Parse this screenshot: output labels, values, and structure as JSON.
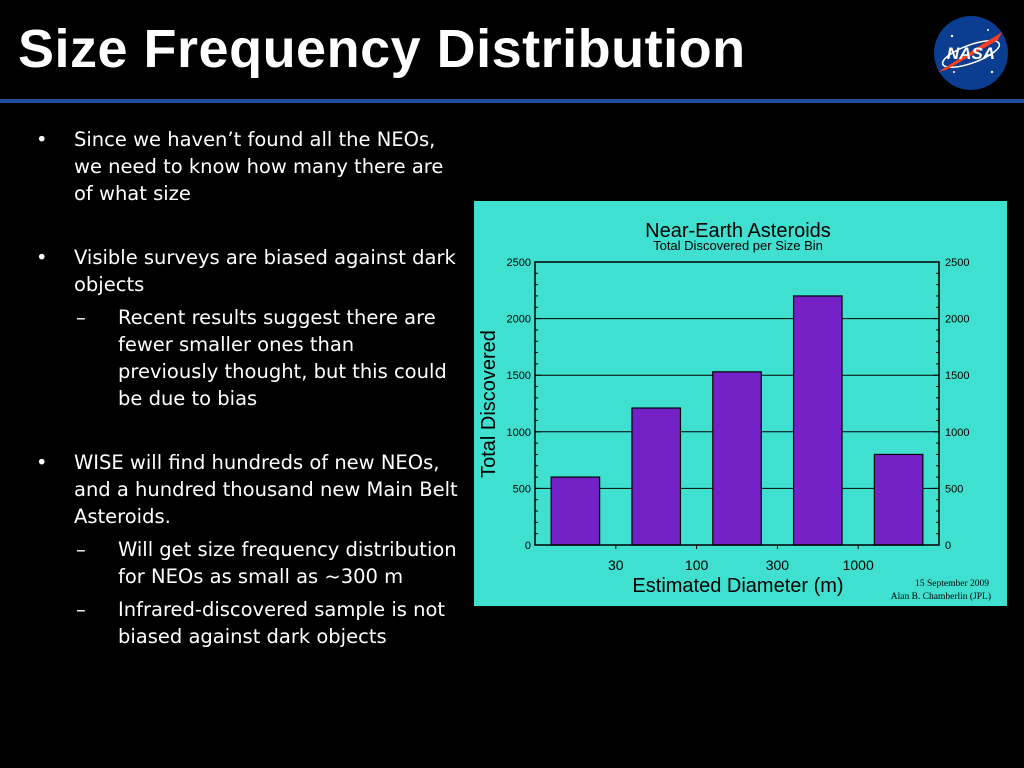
{
  "slide": {
    "title": "Size Frequency Distribution",
    "logo_text": "NASA"
  },
  "bullets": [
    {
      "marker": "•",
      "text": "Since we haven’t found all the NEOs, we need to know how many there are of what size",
      "subs": []
    },
    {
      "marker": "•",
      "text": "Visible surveys are biased against dark objects",
      "subs": [
        {
          "marker": "–",
          "text": "Recent results suggest there are fewer smaller ones than previously thought, but this could be due to bias"
        }
      ]
    },
    {
      "marker": "•",
      "text": "WISE will find hundreds of new NEOs, and a hundred thousand new Main Belt Asteroids.",
      "subs": [
        {
          "marker": "–",
          "text": "Will get size frequency distribution for NEOs as small as ~300 m"
        },
        {
          "marker": "–",
          "text": "Infrared-discovered sample is not biased against dark objects"
        }
      ]
    }
  ],
  "colors": {
    "background": "#000000",
    "title_rule": "#1f4f9c",
    "chart_panel": "#40e0d0",
    "bar_fill": "#7422c8",
    "nasa_blue": "#0b3d91",
    "nasa_red": "#fc3d21"
  },
  "chart_data": {
    "type": "bar",
    "title": "Near-Earth Asteroids",
    "subtitle": "Total Discovered per Size Bin",
    "xlabel": "Estimated Diameter (m)",
    "ylabel": "Total Discovered",
    "x_tick_labels": [
      "30",
      "100",
      "300",
      "1000"
    ],
    "values": [
      600,
      1210,
      1530,
      2200,
      800
    ],
    "ylim": [
      0,
      2500
    ],
    "y_ticks": [
      0,
      500,
      1000,
      1500,
      2000,
      2500
    ],
    "y_tick_labels": [
      "0",
      "500",
      "1000",
      "1500",
      "2000",
      "2500"
    ],
    "right_axis": true,
    "grid": "horizontal",
    "credit_lines": [
      "15 September 2009",
      "Alan B. Chamberlin (JPL)"
    ]
  }
}
